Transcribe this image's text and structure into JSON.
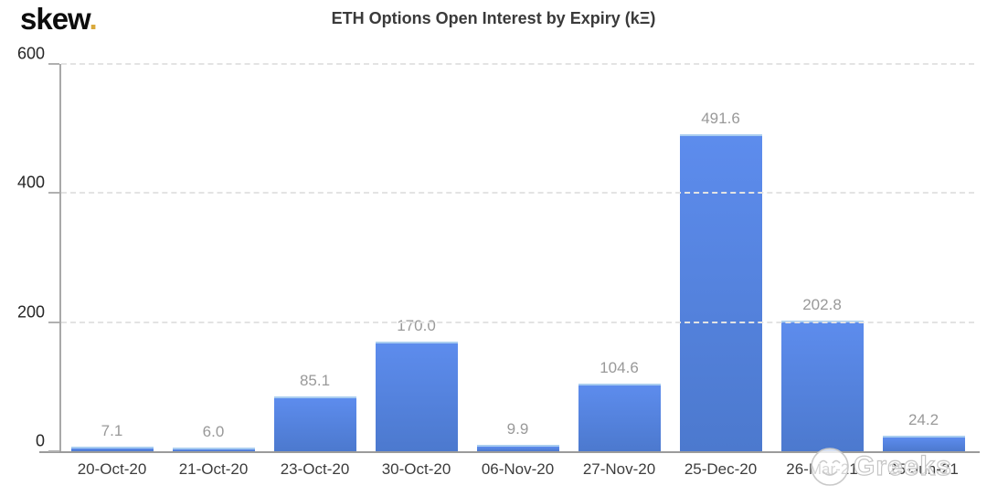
{
  "logo": {
    "text": "skew",
    "dot": ".",
    "dot_color": "#d9a93c"
  },
  "chart_data": {
    "type": "bar",
    "title": "ETH Options Open Interest by Expiry (kΞ)",
    "categories": [
      "20-Oct-20",
      "21-Oct-20",
      "23-Oct-20",
      "30-Oct-20",
      "06-Nov-20",
      "27-Nov-20",
      "25-Dec-20",
      "26-Mar-21",
      "25-Jun-21"
    ],
    "values": [
      7.1,
      6.0,
      85.1,
      170.0,
      9.9,
      104.6,
      491.6,
      202.8,
      24.2
    ],
    "xlabel": "",
    "ylabel": "",
    "ylim": [
      0,
      600
    ],
    "yticks": [
      0,
      200,
      400,
      600
    ],
    "grid": "horizontal-dashed",
    "legend": "none",
    "bar_color_top": "#5d8ced",
    "bar_color_bottom": "#4c79ce",
    "grid_color": "#e3e3e3"
  },
  "watermark": {
    "text": "Greeks",
    "icon": "smiley-face-logo"
  }
}
